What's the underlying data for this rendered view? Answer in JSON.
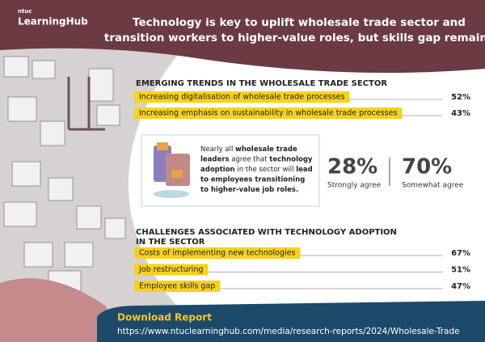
{
  "logo": {
    "small": "ntuc",
    "name": "LearningHub"
  },
  "title": [
    "Technology is key to uplift wholesale trade sector and",
    "transition workers to higher-value roles, but skills gap remains"
  ],
  "trends": {
    "heading": "EMERGING TRENDS IN THE WHOLESALE TRADE SECTOR",
    "items": [
      {
        "label": "Increasing digitalisation of wholesale trade processes",
        "value": "52%"
      },
      {
        "label": "Increasing emphasis on sustainability in wholesale trade processes",
        "value": "43%"
      }
    ]
  },
  "agreement": {
    "lines": [
      [
        {
          "text": "Nearly all "
        },
        {
          "text": "wholesale trade"
        }
      ],
      [
        {
          "text": "leaders"
        },
        {
          "text": " agree that "
        },
        {
          "text": "technology"
        }
      ],
      [
        {
          "text": "adoption"
        },
        {
          "text": " in the sector will "
        },
        {
          "text": "lead"
        }
      ],
      [
        {
          "text": "to employees transitioning"
        }
      ],
      [
        {
          "text": "to higher-value job roles."
        }
      ]
    ]
  },
  "stats": [
    {
      "value": "28%",
      "label": "Strongly agree"
    },
    {
      "value": "70%",
      "label": "Somewhat agree"
    }
  ],
  "challenges": {
    "heading": [
      "CHALLENGES ASSOCIATED WITH TECHNOLOGY ADOPTION",
      "IN THE SECTOR"
    ],
    "items": [
      {
        "label": "Costs of implementing new technologies",
        "value": "67%"
      },
      {
        "label": "Job restructuring",
        "value": "51%"
      },
      {
        "label": "Employee skills gap",
        "value": "47%"
      }
    ]
  },
  "footer": {
    "download": "Download Report",
    "url": "https://www.ntuclearninghub.com/media/research-reports/2024/Wholesale-Trade"
  }
}
